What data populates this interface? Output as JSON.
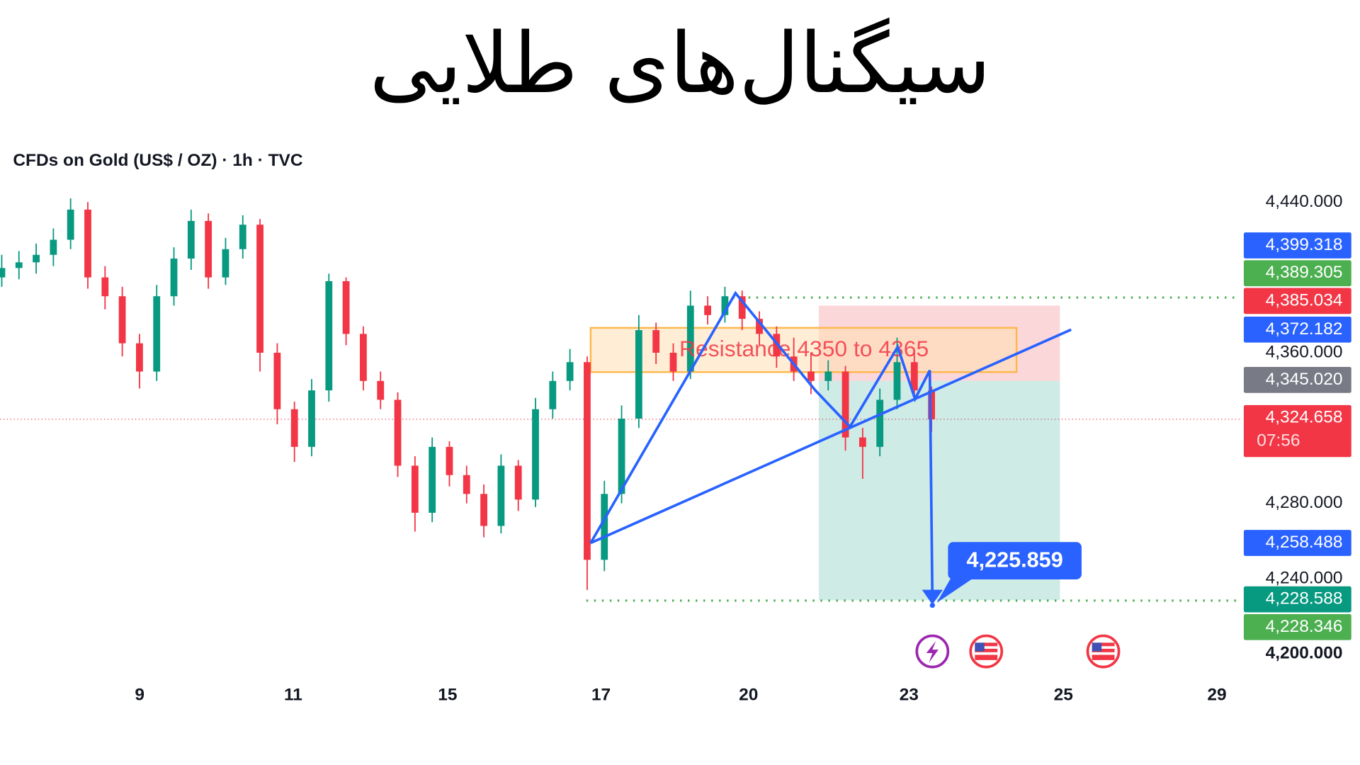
{
  "title": "سیگنال‌های طلایی",
  "chart_data": {
    "type": "candlestick",
    "subtitle": "CFDs on Gold (US$ / OZ) · 1h · TVC",
    "open": [
      4400,
      4405,
      4408,
      4412,
      4420,
      4436,
      4400,
      4390,
      4365,
      4350,
      4390,
      4410,
      4430,
      4400,
      4415,
      4428,
      4360,
      4330,
      4310,
      4340,
      4398,
      4370,
      4345,
      4335,
      4300,
      4275,
      4310,
      4295,
      4285,
      4268,
      4300,
      4282,
      4330,
      4345,
      4355,
      4250,
      4285,
      4325,
      4372,
      4360,
      4350,
      4385,
      4380,
      4390,
      4378,
      4370,
      4358,
      4350,
      4345,
      4350,
      4315,
      4310,
      4335,
      4355,
      4340
    ],
    "high": [
      4412,
      4414,
      4418,
      4426,
      4442,
      4440,
      4406,
      4395,
      4370,
      4396,
      4416,
      4436,
      4434,
      4421,
      4433,
      4431,
      4365,
      4334,
      4346,
      4402,
      4400,
      4374,
      4350,
      4339,
      4305,
      4315,
      4313,
      4300,
      4290,
      4306,
      4303,
      4336,
      4350,
      4362,
      4358,
      4292,
      4332,
      4380,
      4376,
      4365,
      4393,
      4390,
      4395,
      4393,
      4382,
      4374,
      4368,
      4360,
      4356,
      4353,
      4320,
      4341,
      4368,
      4360,
      4342
    ],
    "low": [
      4395,
      4399,
      4402,
      4406,
      4415,
      4394,
      4383,
      4358,
      4341,
      4345,
      4385,
      4404,
      4394,
      4396,
      4410,
      4350,
      4322,
      4302,
      4305,
      4334,
      4364,
      4340,
      4330,
      4294,
      4265,
      4270,
      4289,
      4280,
      4262,
      4264,
      4276,
      4278,
      4325,
      4340,
      4234,
      4244,
      4280,
      4320,
      4354,
      4345,
      4346,
      4375,
      4376,
      4372,
      4364,
      4352,
      4345,
      4338,
      4340,
      4308,
      4293,
      4305,
      4330,
      4335,
      4318
    ],
    "close": [
      4405,
      4408,
      4412,
      4420,
      4436,
      4400,
      4390,
      4365,
      4350,
      4390,
      4410,
      4430,
      4400,
      4415,
      4428,
      4360,
      4330,
      4310,
      4340,
      4398,
      4370,
      4345,
      4335,
      4300,
      4275,
      4310,
      4295,
      4285,
      4268,
      4300,
      4282,
      4330,
      4345,
      4355,
      4250,
      4285,
      4325,
      4372,
      4360,
      4350,
      4385,
      4380,
      4390,
      4378,
      4370,
      4358,
      4350,
      4345,
      4350,
      4315,
      4310,
      4335,
      4355,
      4340,
      4324.658
    ],
    "up_color": "#089981",
    "down_color": "#f23645",
    "ylim": [
      4200,
      4440
    ],
    "yticks": [
      {
        "value": 4440,
        "label": "4,440.000"
      },
      {
        "value": 4360,
        "label": "4,360.000"
      },
      {
        "value": 4280,
        "label": "4,280.000"
      },
      {
        "value": 4240,
        "label": "4,240.000"
      },
      {
        "value": 4200,
        "label": "4,200.000"
      }
    ],
    "x_labels": [
      9,
      11,
      15,
      17,
      20,
      23,
      25,
      29
    ],
    "price_tags": [
      {
        "value": 4399.318,
        "label": "4,399.318",
        "color": "#2962ff"
      },
      {
        "value": 4389.305,
        "label": "4,389.305",
        "color": "#4caf50"
      },
      {
        "value": 4385.034,
        "label": "4,385.034",
        "color": "#f23645"
      },
      {
        "value": 4372.182,
        "label": "4,372.182",
        "color": "#2962ff"
      },
      {
        "value": 4345.02,
        "label": "4,345.020",
        "color": "#787b86"
      },
      {
        "value": 4324.658,
        "label": "4,324.658",
        "color": "#f23645",
        "countdown": "07:56"
      },
      {
        "value": 4258.488,
        "label": "4,258.488",
        "color": "#2962ff"
      },
      {
        "value": 4228.588,
        "label": "4,228.588",
        "color": "#089981"
      },
      {
        "value": 4228.346,
        "label": "4,228.346",
        "color": "#4caf50"
      }
    ],
    "annotation": "Resistance 4350 to 4365",
    "target_callout": {
      "value": 4225.859,
      "label": "4,225.859"
    }
  }
}
